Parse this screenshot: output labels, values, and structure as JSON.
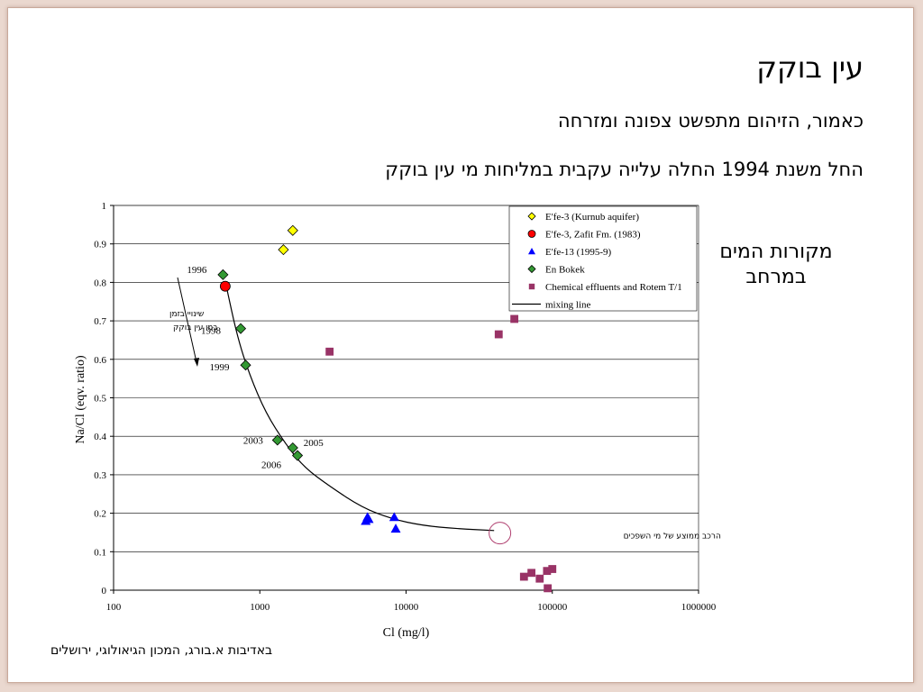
{
  "slide": {
    "title": "עין בוקק",
    "subtitle1": "כאמור, הזיהום מתפשט צפונה ומזרחה",
    "subtitle2": "החל משנת 1994 החלה עלייה עקבית במליחות מי עין בוקק",
    "side_label_line1": "מקורות המים",
    "side_label_line2": "במרחב",
    "credit": "באדיבות א.בורג, המכון הגיאולוגי, ירושלים"
  },
  "chart_data": {
    "type": "scatter",
    "xlabel": "Cl (mg/l)",
    "ylabel": "Na/Cl (eqv. ratio)",
    "xscale": "log",
    "xlim": [
      100,
      1000000
    ],
    "ylim": [
      0,
      1
    ],
    "xticks": [
      "100",
      "1000",
      "10000",
      "100000",
      "1000000"
    ],
    "yticks": [
      "0",
      "0.1",
      "0.2",
      "0.3",
      "0.4",
      "0.5",
      "0.6",
      "0.7",
      "0.8",
      "0.9",
      "1"
    ],
    "grid": "horizontal",
    "legend_position": "top-right",
    "series": [
      {
        "name": "E'fe-3 (Kurnub aquifer)",
        "marker": "diamond",
        "color": "#ffff00",
        "points": [
          [
            1450,
            0.885
          ],
          [
            1680,
            0.935
          ]
        ]
      },
      {
        "name": "E'fe-3, Zafit Fm. (1983)",
        "marker": "circle",
        "color": "#ff0000",
        "points": [
          [
            580,
            0.79
          ]
        ]
      },
      {
        "name": "E'fe-13 (1995-9)",
        "marker": "triangle",
        "color": "#0000ff",
        "points": [
          [
            5300,
            0.18
          ],
          [
            5450,
            0.19
          ],
          [
            5550,
            0.185
          ],
          [
            8300,
            0.19
          ],
          [
            8500,
            0.16
          ]
        ]
      },
      {
        "name": "En Bokek",
        "marker": "diamond",
        "color": "#339933",
        "points": [
          [
            560,
            0.82
          ],
          [
            740,
            0.68
          ],
          [
            800,
            0.585
          ],
          [
            1320,
            0.39
          ],
          [
            1680,
            0.37
          ],
          [
            1810,
            0.35
          ]
        ]
      },
      {
        "name": "Chemical effluents and Rotem T/1",
        "marker": "square",
        "color": "#993366",
        "points": [
          [
            3000,
            0.62
          ],
          [
            43000,
            0.665
          ],
          [
            55000,
            0.705
          ],
          [
            64000,
            0.035
          ],
          [
            72000,
            0.045
          ],
          [
            82000,
            0.03
          ],
          [
            92000,
            0.05
          ],
          [
            100000,
            0.055
          ],
          [
            93000,
            0.005
          ]
        ]
      }
    ],
    "mixing_line": {
      "name": "mixing line",
      "points": [
        [
          590,
          0.79
        ],
        [
          700,
          0.66
        ],
        [
          850,
          0.56
        ],
        [
          1100,
          0.46
        ],
        [
          1500,
          0.38
        ],
        [
          2000,
          0.32
        ],
        [
          3000,
          0.27
        ],
        [
          5000,
          0.215
        ],
        [
          8000,
          0.185
        ],
        [
          13000,
          0.168
        ],
        [
          22000,
          0.16
        ],
        [
          40000,
          0.155
        ]
      ]
    },
    "annotations": [
      {
        "text": "1996",
        "x": 560,
        "y": 0.82
      },
      {
        "text": "1998",
        "x": 740,
        "y": 0.68
      },
      {
        "text": "1999",
        "x": 800,
        "y": 0.585
      },
      {
        "text": "2003",
        "x": 1320,
        "y": 0.39
      },
      {
        "text": "2005",
        "x": 1680,
        "y": 0.37
      },
      {
        "text": "2006",
        "x": 1810,
        "y": 0.35
      }
    ],
    "arrow_note_line1": "שינויי בזמן",
    "arrow_note_line2": "במי עין בוקק",
    "endmember_note": "הרכב ממוצע של מי השפכים",
    "endmember_point": [
      42000,
      0.16
    ]
  }
}
